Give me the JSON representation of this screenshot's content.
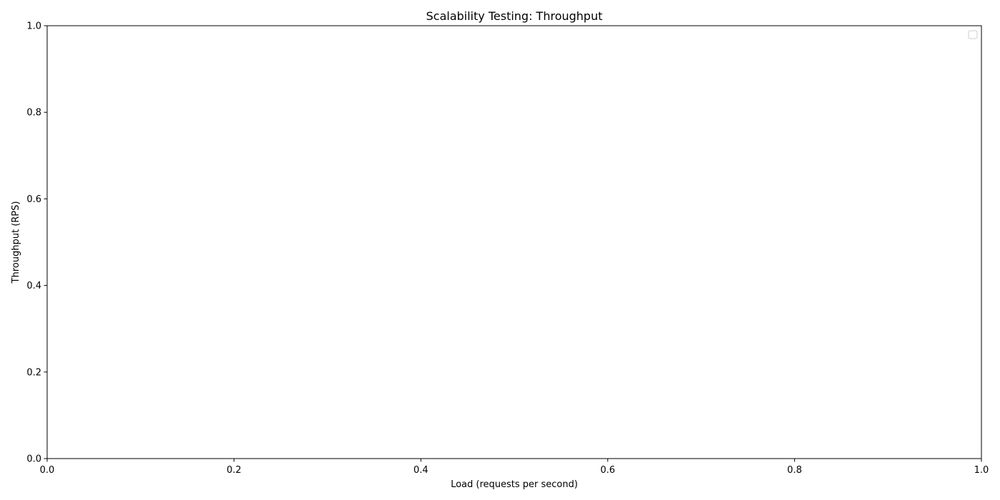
{
  "chart_data": {
    "type": "line",
    "title": "Scalability Testing: Throughput",
    "xlabel": "Load (requests per second)",
    "ylabel": "Throughput (RPS)",
    "xlim": [
      0.0,
      1.0
    ],
    "ylim": [
      0.0,
      1.0
    ],
    "xticks": [
      "0.0",
      "0.2",
      "0.4",
      "0.6",
      "0.8",
      "1.0"
    ],
    "yticks": [
      "0.0",
      "0.2",
      "0.4",
      "0.6",
      "0.8",
      "1.0"
    ],
    "series": [],
    "grid": false,
    "legend": {
      "placement": "upper right",
      "entries": []
    }
  }
}
